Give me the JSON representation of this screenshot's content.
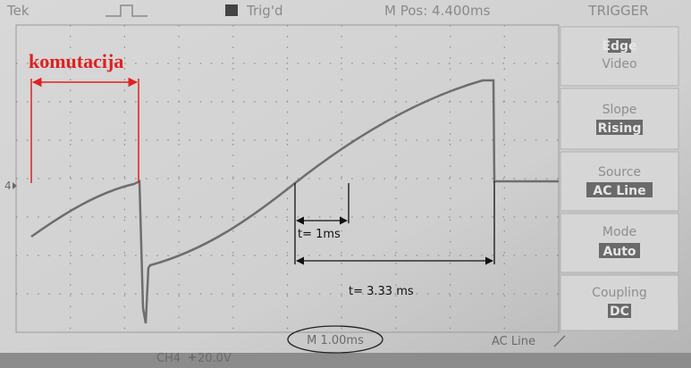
{
  "header": {
    "brand": "Tek",
    "status": "Trig'd",
    "position": "M Pos: 4.400ms",
    "menu_title": "TRIGGER"
  },
  "menu": [
    {
      "label": "Edge",
      "option": "Video"
    },
    {
      "label": "Slope",
      "option": "Rising"
    },
    {
      "label": "Source",
      "option": "AC Line"
    },
    {
      "label": "Mode",
      "option": "Auto"
    },
    {
      "label": "Coupling",
      "option": "DC"
    }
  ],
  "channel_marker": "4",
  "footer": {
    "channel": "CH4",
    "scale": "20.0V",
    "timebase": "M 1.00ms",
    "trigger_source": "AC Line"
  },
  "annotations": {
    "label": "komutacija",
    "short_interval": "t= 1ms",
    "long_interval": "t= 3.33 ms"
  }
}
